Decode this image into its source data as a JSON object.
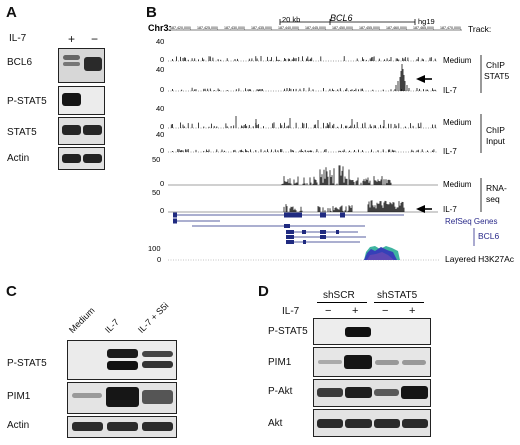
{
  "panelA": {
    "label": "A",
    "treatment": "IL-7",
    "signs": [
      "+",
      "−"
    ],
    "rows": [
      "BCL6",
      "P-STAT5",
      "STAT5",
      "Actin"
    ]
  },
  "panelB": {
    "label": "B",
    "chrom": "Chr3:",
    "scale": "20 kb",
    "genome": "hg19",
    "gene": "BCL6",
    "track_header": "Track:",
    "coords": [
      "187,420,000|",
      "187,425,000|",
      "187,430,000|",
      "187,435,000|",
      "187,440,000|",
      "187,445,000|",
      "187,450,000|",
      "187,455,000|",
      "187,460,000|",
      "187,465,000|",
      "187,470,000|"
    ],
    "tracks": [
      {
        "name": "Medium",
        "ymax": "40",
        "ymin": "0"
      },
      {
        "name": "IL-7",
        "ymax": "40",
        "ymin": "0"
      },
      {
        "name": "Medium",
        "ymax": "40",
        "ymin": "0"
      },
      {
        "name": "IL-7",
        "ymax": "40",
        "ymin": "0"
      },
      {
        "name": "Medium",
        "ymax": "50",
        "ymin": "0"
      },
      {
        "name": "IL-7",
        "ymax": "50",
        "ymin": "0"
      }
    ],
    "groups": [
      {
        "line1": "ChIP",
        "line2": "STAT5"
      },
      {
        "line1": "ChIP",
        "line2": "Input"
      },
      {
        "line1": "RNA-",
        "line2": "seq"
      }
    ],
    "refseq_label": "RefSeq Genes",
    "refseq_gene": "BCL6",
    "h3k27ac": {
      "label": "Layered H3K27Ac",
      "ymax": "100",
      "ymin": "0"
    }
  },
  "panelC": {
    "label": "C",
    "lanes": [
      "Medium",
      "IL-7",
      "IL-7 + S5i"
    ],
    "rows": [
      "P-STAT5",
      "PIM1",
      "Actin"
    ]
  },
  "panelD": {
    "label": "D",
    "groups": [
      "shSCR",
      "shSTAT5"
    ],
    "treatment": "IL-7",
    "signs": [
      "−",
      "+",
      "−",
      "+"
    ],
    "rows": [
      "P-STAT5",
      "PIM1",
      "P-Akt",
      "Akt"
    ]
  }
}
